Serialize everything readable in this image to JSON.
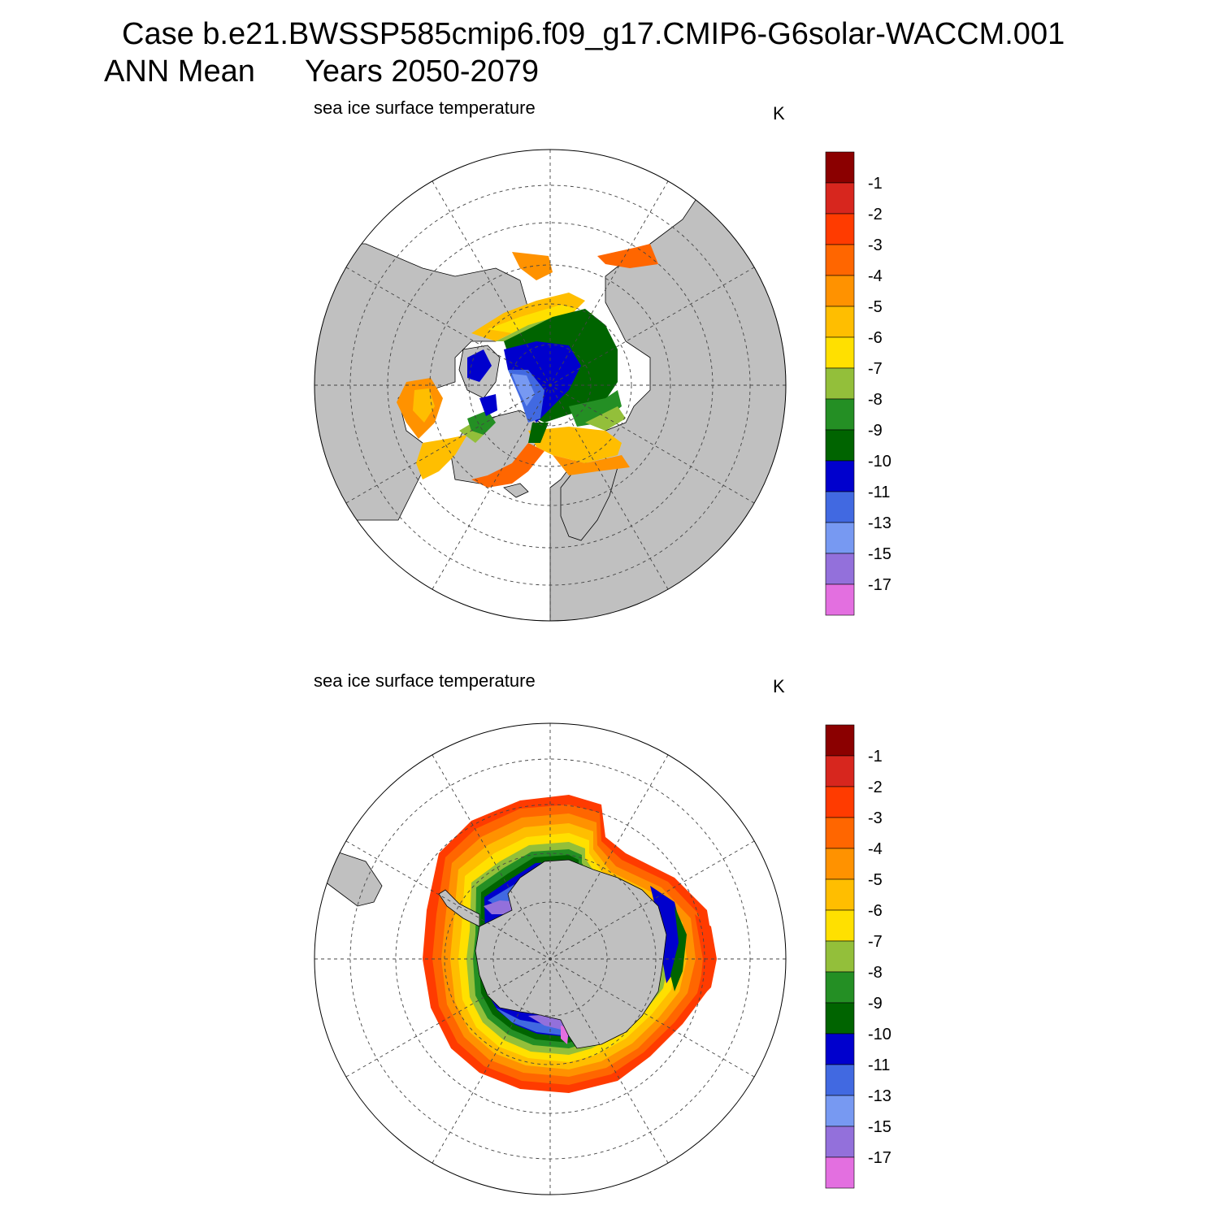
{
  "header": {
    "case_line": "Case b.e21.BWSSP585cmip6.f09_g17.CMIP6-G6solar-WACCM.001",
    "season": "ANN Mean",
    "years": "Years 2050-2079"
  },
  "panels": [
    {
      "id": "north",
      "variable": "sea ice surface temperature",
      "units": "K"
    },
    {
      "id": "south",
      "variable": "sea ice surface temperature",
      "units": "K"
    }
  ],
  "colorbar": {
    "labels": [
      "-1",
      "-2",
      "-3",
      "-4",
      "-5",
      "-6",
      "-7",
      "-8",
      "-9",
      "-10",
      "-11",
      "-13",
      "-15",
      "-17"
    ],
    "colors": [
      "#8b0000",
      "#d7261e",
      "#ff3b00",
      "#ff6600",
      "#ff9200",
      "#ffbe00",
      "#ffe000",
      "#93bf3a",
      "#248f24",
      "#006400",
      "#0000cd",
      "#4169e1",
      "#7799f2",
      "#9370db",
      "#e36fe0"
    ]
  },
  "colors": {
    "land": "#c0c0c0",
    "background": "#ffffff",
    "grid": "#444444"
  }
}
